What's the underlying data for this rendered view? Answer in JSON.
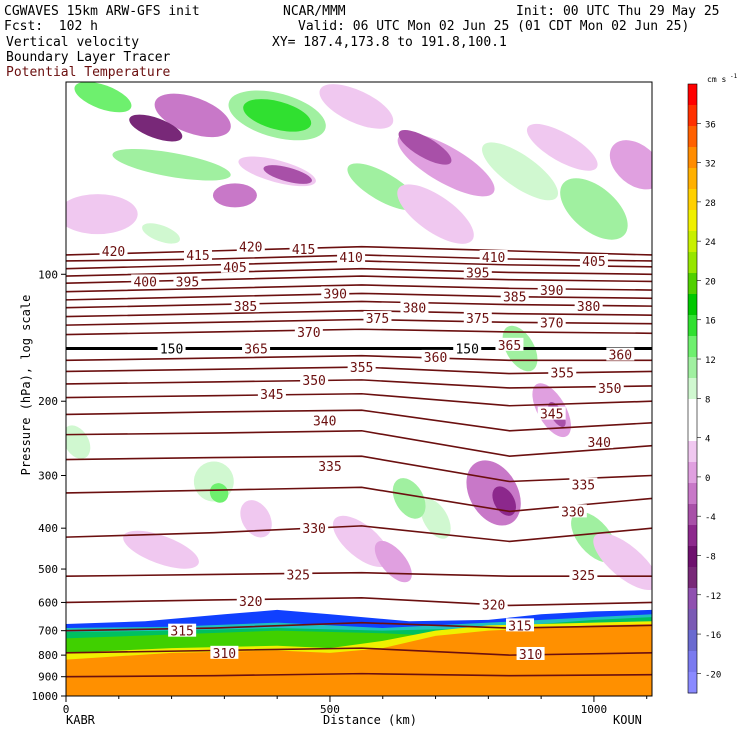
{
  "header": {
    "model_line": "CGWAVES 15km ARW-GFS init",
    "fcst": "Fcst:  102 h",
    "field1": "Vertical velocity",
    "field2": "Boundary Layer Tracer",
    "field3": "Potential Temperature",
    "org": "NCAR/MMM",
    "init": "Init: 00 UTC Thu 29 May 25",
    "valid": "Valid: 06 UTC Mon 02 Jun 25 (01 CDT Mon 02 Jun 25)",
    "xy": "XY= 187.4,173.8 to 191.8,100.1"
  },
  "colors": {
    "theta": "#6b0f0f",
    "tropopause": "#000000"
  },
  "chart_data": {
    "type": "heatmap",
    "xlabel": "Distance (km)",
    "ylabel": "Pressure (hPa), log scale",
    "xlim": [
      0,
      1110
    ],
    "ylim": [
      1000,
      35
    ],
    "x_ticks": [
      "0",
      "500",
      "1000"
    ],
    "x_tick_values": [
      0,
      500,
      1000
    ],
    "y_ticks": [
      "100",
      "200",
      "300",
      "400",
      "500",
      "600",
      "700",
      "800",
      "900",
      "1000"
    ],
    "y_tick_values": [
      100,
      200,
      300,
      400,
      500,
      600,
      700,
      800,
      900,
      1000
    ],
    "endpoint_left": "KABR",
    "endpoint_right": "KOUN",
    "colorbar": {
      "unit": "cm s",
      "unit_exp": "-1",
      "labels": [
        "36",
        "32",
        "28",
        "24",
        "20",
        "16",
        "12",
        "8",
        "4",
        "0",
        "-4",
        "-8",
        "-12",
        "-16",
        "-20"
      ],
      "label_values": [
        36,
        32,
        28,
        24,
        20,
        16,
        12,
        8,
        4,
        0,
        -4,
        -8,
        -12,
        -16,
        -20
      ],
      "colors": [
        "#ff0000",
        "#ff3000",
        "#ff6000",
        "#ff8c00",
        "#ffb000",
        "#ffd000",
        "#f0f000",
        "#c8f000",
        "#96e600",
        "#50d000",
        "#00c800",
        "#30e030",
        "#6ef06e",
        "#a0f0a0",
        "#d0f8d0",
        "#ffffff",
        "#ffffff",
        "#f0c8f0",
        "#e0a0e0",
        "#c878c8",
        "#a850a8",
        "#8c288c",
        "#6e106e",
        "#782878",
        "#9050b0",
        "#7a5ab4",
        "#6a6ad0",
        "#7a7aef",
        "#8a8aff"
      ]
    },
    "theta_labels": [
      {
        "text": "420",
        "x": 90,
        "p": 88
      },
      {
        "text": "415",
        "x": 250,
        "p": 90
      },
      {
        "text": "420",
        "x": 350,
        "p": 86
      },
      {
        "text": "415",
        "x": 450,
        "p": 87
      },
      {
        "text": "410",
        "x": 540,
        "p": 91
      },
      {
        "text": "410",
        "x": 810,
        "p": 91
      },
      {
        "text": "405",
        "x": 320,
        "p": 96
      },
      {
        "text": "405",
        "x": 1000,
        "p": 93
      },
      {
        "text": "400",
        "x": 150,
        "p": 104
      },
      {
        "text": "395",
        "x": 230,
        "p": 104
      },
      {
        "text": "395",
        "x": 780,
        "p": 99
      },
      {
        "text": "390",
        "x": 510,
        "p": 111
      },
      {
        "text": "390",
        "x": 920,
        "p": 109
      },
      {
        "text": "385",
        "x": 340,
        "p": 119
      },
      {
        "text": "385",
        "x": 850,
        "p": 113
      },
      {
        "text": "380",
        "x": 660,
        "p": 120
      },
      {
        "text": "380",
        "x": 990,
        "p": 119
      },
      {
        "text": "375",
        "x": 590,
        "p": 127
      },
      {
        "text": "375",
        "x": 780,
        "p": 127
      },
      {
        "text": "370",
        "x": 460,
        "p": 137
      },
      {
        "text": "370",
        "x": 920,
        "p": 130
      },
      {
        "text": "365",
        "x": 360,
        "p": 150
      },
      {
        "text": "365",
        "x": 840,
        "p": 147
      },
      {
        "text": "360",
        "x": 700,
        "p": 157
      },
      {
        "text": "360",
        "x": 1050,
        "p": 155
      },
      {
        "text": "355",
        "x": 560,
        "p": 166
      },
      {
        "text": "355",
        "x": 940,
        "p": 171
      },
      {
        "text": "350",
        "x": 470,
        "p": 178
      },
      {
        "text": "350",
        "x": 1030,
        "p": 186
      },
      {
        "text": "345",
        "x": 390,
        "p": 192
      },
      {
        "text": "345",
        "x": 920,
        "p": 214
      },
      {
        "text": "340",
        "x": 490,
        "p": 222
      },
      {
        "text": "340",
        "x": 1010,
        "p": 250
      },
      {
        "text": "335",
        "x": 500,
        "p": 285
      },
      {
        "text": "335",
        "x": 980,
        "p": 315
      },
      {
        "text": "330",
        "x": 470,
        "p": 400
      },
      {
        "text": "330",
        "x": 960,
        "p": 365
      },
      {
        "text": "325",
        "x": 440,
        "p": 515
      },
      {
        "text": "325",
        "x": 980,
        "p": 517
      },
      {
        "text": "320",
        "x": 350,
        "p": 595
      },
      {
        "text": "320",
        "x": 810,
        "p": 606
      },
      {
        "text": "315",
        "x": 220,
        "p": 700
      },
      {
        "text": "315",
        "x": 860,
        "p": 680
      },
      {
        "text": "310",
        "x": 300,
        "p": 790
      },
      {
        "text": "310",
        "x": 880,
        "p": 795
      },
      {
        "text": "150",
        "x": 200,
        "p": 150
      },
      {
        "text": "150",
        "x": 760,
        "p": 150
      }
    ]
  }
}
